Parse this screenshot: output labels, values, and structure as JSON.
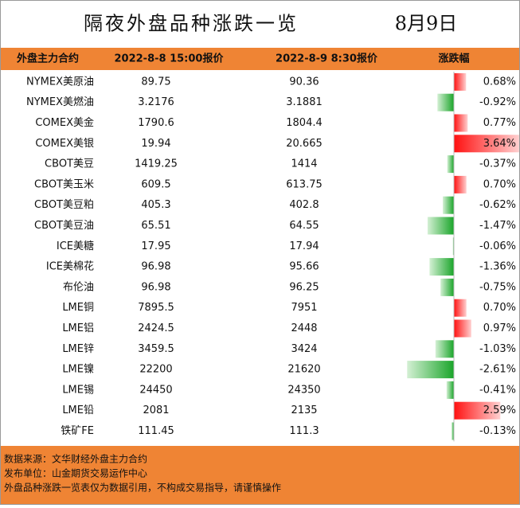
{
  "header": {
    "title": "隔夜外盘品种涨跌一览",
    "date": "8月9日"
  },
  "table": {
    "columns": [
      "外盘主力合约",
      "2022-8-8 15:00报价",
      "2022-8-9 8:30报价",
      "涨跌幅"
    ],
    "rows": [
      {
        "name": "NYMEX美原油",
        "prev": "89.75",
        "curr": "90.36",
        "change": 0.68,
        "change_label": "0.68%"
      },
      {
        "name": "NYMEX美燃油",
        "prev": "3.2176",
        "curr": "3.1881",
        "change": -0.92,
        "change_label": "-0.92%"
      },
      {
        "name": "COMEX美金",
        "prev": "1790.6",
        "curr": "1804.4",
        "change": 0.77,
        "change_label": "0.77%"
      },
      {
        "name": "COMEX美银",
        "prev": "19.94",
        "curr": "20.665",
        "change": 3.64,
        "change_label": "3.64%"
      },
      {
        "name": "CBOT美豆",
        "prev": "1419.25",
        "curr": "1414",
        "change": -0.37,
        "change_label": "-0.37%"
      },
      {
        "name": "CBOT美玉米",
        "prev": "609.5",
        "curr": "613.75",
        "change": 0.7,
        "change_label": "0.70%"
      },
      {
        "name": "CBOT美豆粕",
        "prev": "405.3",
        "curr": "402.8",
        "change": -0.62,
        "change_label": "-0.62%"
      },
      {
        "name": "CBOT美豆油",
        "prev": "65.51",
        "curr": "64.55",
        "change": -1.47,
        "change_label": "-1.47%"
      },
      {
        "name": "ICE美糖",
        "prev": "17.95",
        "curr": "17.94",
        "change": -0.06,
        "change_label": "-0.06%"
      },
      {
        "name": "ICE美棉花",
        "prev": "96.98",
        "curr": "95.66",
        "change": -1.36,
        "change_label": "-1.36%"
      },
      {
        "name": "布伦油",
        "prev": "96.98",
        "curr": "96.25",
        "change": -0.75,
        "change_label": "-0.75%"
      },
      {
        "name": "LME铜",
        "prev": "7895.5",
        "curr": "7951",
        "change": 0.7,
        "change_label": "0.70%"
      },
      {
        "name": "LME铝",
        "prev": "2424.5",
        "curr": "2448",
        "change": 0.97,
        "change_label": "0.97%"
      },
      {
        "name": "LME锌",
        "prev": "3459.5",
        "curr": "3424",
        "change": -1.03,
        "change_label": "-1.03%"
      },
      {
        "name": "LME镍",
        "prev": "22200",
        "curr": "21620",
        "change": -2.61,
        "change_label": "-2.61%"
      },
      {
        "name": "LME锡",
        "prev": "24450",
        "curr": "24350",
        "change": -0.41,
        "change_label": "-0.41%"
      },
      {
        "name": "LME铅",
        "prev": "2081",
        "curr": "2135",
        "change": 2.59,
        "change_label": "2.59%"
      },
      {
        "name": "铁矿FE",
        "prev": "111.45",
        "curr": "111.3",
        "change": -0.13,
        "change_label": "-0.13%"
      }
    ]
  },
  "footer": {
    "lines": [
      "数据来源：文华财经外盘主力合约",
      "发布单位：山金期货交易运作中心",
      "外盘品种涨跌一览表仅为数据引用，不构成交易指导，请谨慎操作"
    ]
  }
}
